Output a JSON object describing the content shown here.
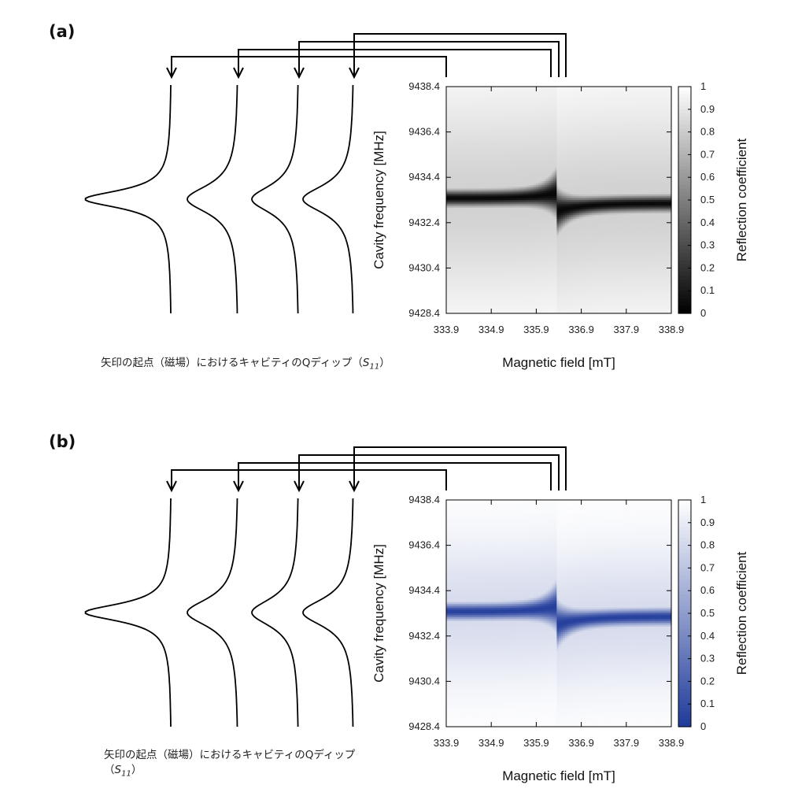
{
  "panels": [
    {
      "label": "(a)",
      "caption": {
        "prefix": "矢印の起点（磁場）におけるキャビティのQディップ（",
        "sym": "S",
        "sub": "11",
        "suffix": "）"
      },
      "colormap": {
        "low": "#000000",
        "high": "#ffffff"
      }
    },
    {
      "label": "(b)",
      "caption": {
        "prefix": "矢印の起点（磁場）におけるキャビティのQディップ",
        "sym": "S",
        "sub": "11",
        "suffix": "）",
        "open": "（"
      },
      "colormap": {
        "low": "#1f3a9a",
        "high": "#ffffff"
      }
    }
  ],
  "chart_data": [
    {
      "type": "heatmap",
      "xlabel": "Magnetic field [mT]",
      "ylabel": "Cavity frequency [MHz]",
      "colorbar_label": "Reflection coefficient",
      "x_ticks": [
        "333.9",
        "334.9",
        "335.9",
        "336.9",
        "337.9",
        "338.9"
      ],
      "y_ticks": [
        "9428.4",
        "9430.4",
        "9432.4",
        "9434.4",
        "9436.4",
        "9438.4"
      ],
      "colorbar_ticks": [
        "0",
        "0.1",
        "0.2",
        "0.3",
        "0.4",
        "0.5",
        "0.6",
        "0.7",
        "0.8",
        "0.9",
        "1"
      ],
      "xlim": [
        333.9,
        338.9
      ],
      "ylim": [
        9428.4,
        9438.4
      ],
      "zlim": [
        0,
        1
      ],
      "cavity_center_mhz": 9433.4,
      "resonance_field_mt": 336.35,
      "anticrossing_shift_mhz": [
        0.3,
        -0.5
      ]
    },
    {
      "type": "heatmap",
      "xlabel": "Magnetic field [mT]",
      "ylabel": "Cavity frequency [MHz]",
      "colorbar_label": "Reflection coefficient",
      "x_ticks": [
        "333.9",
        "334.9",
        "335.9",
        "336.9",
        "337.9",
        "338.9"
      ],
      "y_ticks": [
        "9428.4",
        "9430.4",
        "9432.4",
        "9434.4",
        "9436.4",
        "9438.4"
      ],
      "colorbar_ticks": [
        "0",
        "0.1",
        "0.2",
        "0.3",
        "0.4",
        "0.5",
        "0.6",
        "0.7",
        "0.8",
        "0.9",
        "1"
      ],
      "xlim": [
        333.9,
        338.9
      ],
      "ylim": [
        9428.4,
        9438.4
      ],
      "zlim": [
        0,
        1
      ],
      "cavity_center_mhz": 9433.4,
      "resonance_field_mt": 336.35,
      "anticrossing_shift_mhz": [
        0.3,
        -0.5
      ]
    }
  ]
}
